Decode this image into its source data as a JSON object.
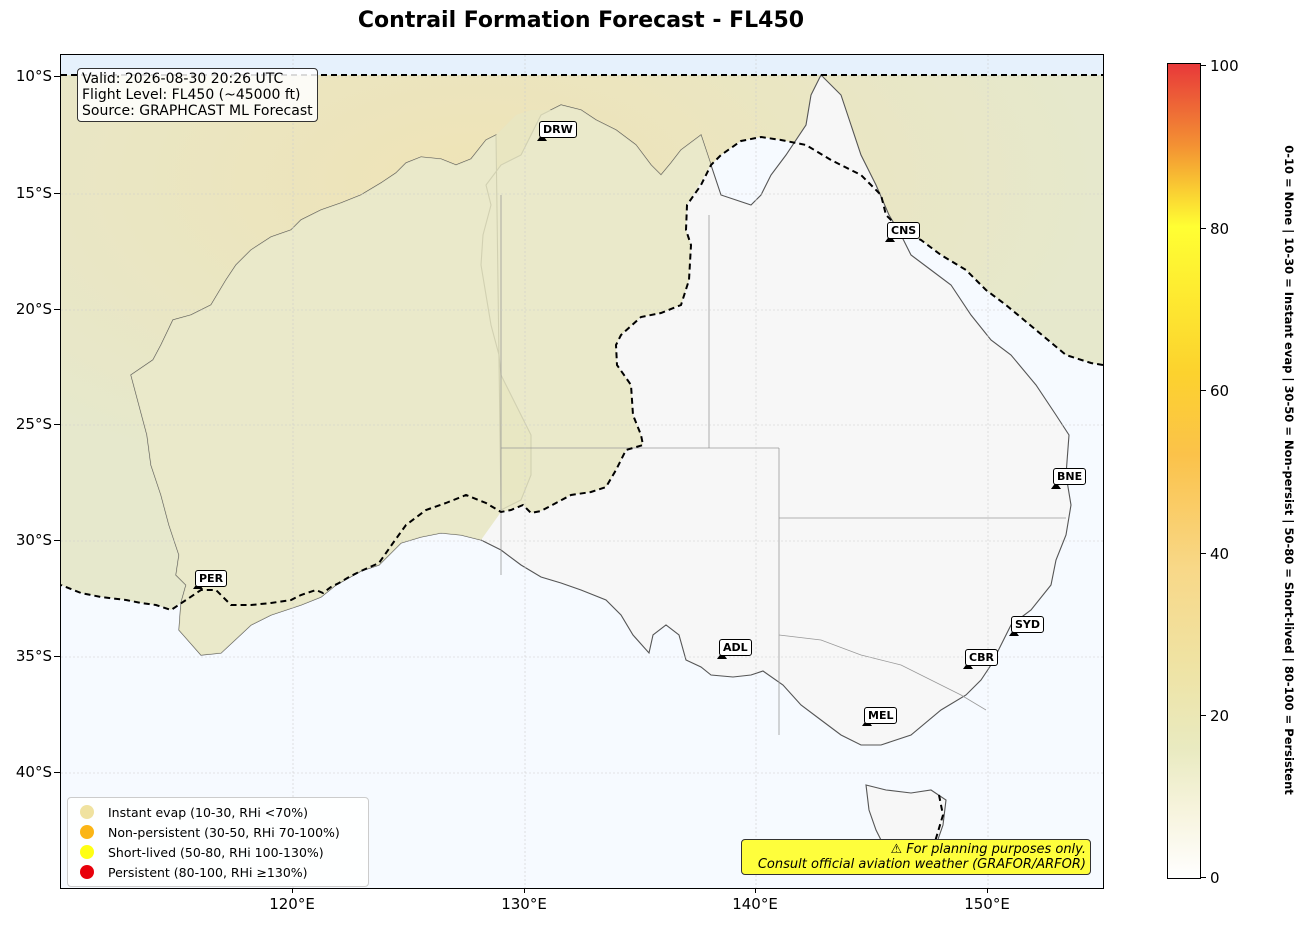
{
  "title": "Contrail Formation Forecast - FL450",
  "info": {
    "valid": "Valid: 2026-08-30 20:26 UTC",
    "flight_level": "Flight Level: FL450 (~45000 ft)",
    "source": "Source: GRAPHCAST ML Forecast"
  },
  "lat_labels": [
    "10°S",
    "15°S",
    "20°S",
    "25°S",
    "30°S",
    "35°S",
    "40°S"
  ],
  "lon_labels": [
    "120°E",
    "130°E",
    "140°E",
    "150°E"
  ],
  "cities": [
    "DRW",
    "CNS",
    "BNE",
    "PER",
    "ADL",
    "SYD",
    "CBR",
    "MEL"
  ],
  "legend": {
    "items": [
      {
        "label": "Instant evap (10-30, RHi <70%)",
        "color": "#f0e2a0"
      },
      {
        "label": "Non-persistent (30-50, RHi 70-100%)",
        "color": "#fbb516"
      },
      {
        "label": "Short-lived (50-80, RHi 100-130%)",
        "color": "#ffff14"
      },
      {
        "label": "Persistent (80-100, RHi ≥130%)",
        "color": "#e8000b"
      }
    ]
  },
  "warning": {
    "line1": "⚠ For planning purposes only.",
    "line2": "Consult official aviation weather (GRAFOR/ARFOR)"
  },
  "colorbar": {
    "ticks": [
      "0",
      "20",
      "40",
      "60",
      "80",
      "100"
    ],
    "caption": "0-10 = None  |  10-30 = Instant evap  |  30-50 = Non-persist  |  50-80 = Short-lived  |  80-100 = Persistent"
  },
  "colors": {
    "ocean": "#f6faff",
    "land": "#f8f8f8",
    "contrail_zone": "#e8e8c6",
    "warning_bg": "#fefe3c"
  }
}
